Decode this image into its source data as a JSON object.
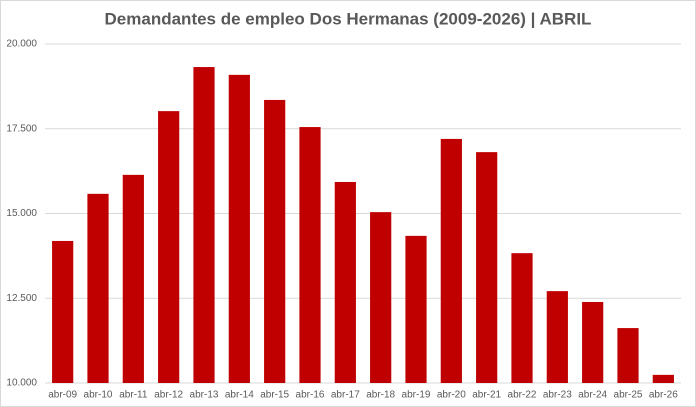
{
  "chart_data": {
    "type": "bar",
    "title": "Demandantes de empleo Dos Hermanas (2009-2026) | ABRIL",
    "categories": [
      "abr-09",
      "abr-10",
      "abr-11",
      "abr-12",
      "abr-13",
      "abr-14",
      "abr-15",
      "abr-16",
      "abr-17",
      "abr-18",
      "abr-19",
      "abr-20",
      "abr-21",
      "abr-22",
      "abr-23",
      "abr-24",
      "abr-25",
      "abr-26"
    ],
    "values": [
      14190,
      15580,
      16140,
      18020,
      19320,
      19090,
      18350,
      17550,
      15930,
      15040,
      14340,
      17200,
      16810,
      13830,
      12710,
      12390,
      11620,
      10240
    ],
    "color": "#c00000",
    "ylim": [
      10000,
      20000
    ],
    "yticks": [
      {
        "value": 10000,
        "label": "10.000"
      },
      {
        "value": 12500,
        "label": "12.500"
      },
      {
        "value": 15000,
        "label": "15.000"
      },
      {
        "value": 17500,
        "label": "17.500"
      },
      {
        "value": 20000,
        "label": "20.000"
      }
    ],
    "grid": true
  }
}
